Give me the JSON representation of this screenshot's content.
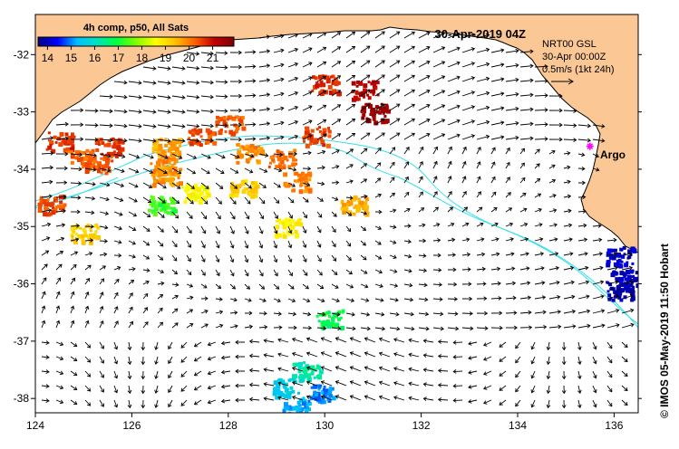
{
  "title": "30-Apr-2019 04Z",
  "colorbar": {
    "title": "4h comp, p50, All Sats",
    "ticks": [
      "14",
      "15",
      "16",
      "17",
      "18",
      "19",
      "20",
      "21"
    ],
    "tick_values": [
      14,
      15,
      16,
      17,
      18,
      19,
      20,
      21
    ],
    "range": [
      13.6,
      21.9
    ],
    "colors": [
      "#00007f",
      "#0000ff",
      "#00bfff",
      "#00e0c0",
      "#00ff40",
      "#80ff00",
      "#ffff00",
      "#ffc000",
      "#ff6000",
      "#c00000",
      "#7f0000"
    ]
  },
  "current_info": {
    "line1": "NRT00 GSL",
    "line2": "30-Apr 00:00Z",
    "line3": "0.5m/s (1kt 24h)"
  },
  "argo_label": "Argo",
  "credit": "© IMOS 05-May-2019 11:50 Hobart",
  "axes": {
    "x_ticks": [
      "124",
      "126",
      "128",
      "130",
      "132",
      "134",
      "136"
    ],
    "x_values": [
      124,
      126,
      128,
      130,
      132,
      134,
      136
    ],
    "y_ticks": [
      "-32",
      "-33",
      "-34",
      "-35",
      "-36",
      "-37",
      "-38"
    ],
    "y_values": [
      -32,
      -33,
      -34,
      -35,
      -36,
      -37,
      -38
    ],
    "lon_range": [
      124,
      136.5
    ],
    "lat_range": [
      -38.25,
      -31.3
    ]
  },
  "colors": {
    "land": "#fbc795",
    "coastline": "#000000",
    "isobath": "#33e0e8",
    "argo": "#ff00ff",
    "arrow": "#000000"
  },
  "argo": {
    "lon": 135.5,
    "lat": -33.6
  },
  "sst_patches": [
    {
      "lon": 124.5,
      "lat": -33.5,
      "value": 20.7
    },
    {
      "lon": 124.9,
      "lat": -33.8,
      "value": 20.2
    },
    {
      "lon": 125.5,
      "lat": -33.6,
      "value": 20.6
    },
    {
      "lon": 125.3,
      "lat": -33.9,
      "value": 20.3
    },
    {
      "lon": 124.3,
      "lat": -34.6,
      "value": 20.4
    },
    {
      "lon": 125.0,
      "lat": -35.1,
      "value": 19.2
    },
    {
      "lon": 126.7,
      "lat": -33.6,
      "value": 19.6
    },
    {
      "lon": 126.6,
      "lat": -33.9,
      "value": 19.9
    },
    {
      "lon": 126.7,
      "lat": -34.1,
      "value": 19.8
    },
    {
      "lon": 127.4,
      "lat": -33.4,
      "value": 20.4
    },
    {
      "lon": 126.6,
      "lat": -34.6,
      "value": 17.3
    },
    {
      "lon": 127.3,
      "lat": -34.4,
      "value": 18.6
    },
    {
      "lon": 128.0,
      "lat": -33.2,
      "value": 20.3
    },
    {
      "lon": 128.4,
      "lat": -33.7,
      "value": 19.9
    },
    {
      "lon": 128.3,
      "lat": -34.3,
      "value": 19.2
    },
    {
      "lon": 129.1,
      "lat": -33.8,
      "value": 20.2
    },
    {
      "lon": 129.4,
      "lat": -34.2,
      "value": 19.9
    },
    {
      "lon": 129.8,
      "lat": -33.4,
      "value": 20.5
    },
    {
      "lon": 130.0,
      "lat": -32.5,
      "value": 20.7
    },
    {
      "lon": 130.8,
      "lat": -32.6,
      "value": 21.2
    },
    {
      "lon": 131.0,
      "lat": -33.0,
      "value": 21.5
    },
    {
      "lon": 130.6,
      "lat": -34.6,
      "value": 19.6
    },
    {
      "lon": 129.2,
      "lat": -35.0,
      "value": 18.8
    },
    {
      "lon": 130.1,
      "lat": -36.6,
      "value": 16.8
    },
    {
      "lon": 129.6,
      "lat": -37.5,
      "value": 16.3
    },
    {
      "lon": 129.2,
      "lat": -37.8,
      "value": 15.6
    },
    {
      "lon": 129.4,
      "lat": -38.1,
      "value": 15.2
    },
    {
      "lon": 129.9,
      "lat": -37.9,
      "value": 15.0
    },
    {
      "lon": 136.1,
      "lat": -35.5,
      "value": 14.1
    },
    {
      "lon": 136.2,
      "lat": -35.9,
      "value": 14.0
    },
    {
      "lon": 136.1,
      "lat": -36.1,
      "value": 13.9
    }
  ]
}
